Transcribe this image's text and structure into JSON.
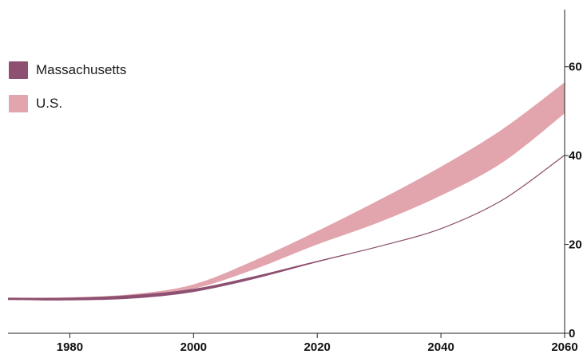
{
  "chart_data": {
    "type": "area",
    "title": "",
    "xlabel": "",
    "ylabel": "",
    "xlim": [
      1970,
      2060
    ],
    "ylim": [
      0,
      70
    ],
    "x_ticks": [
      1980,
      2000,
      2020,
      2040,
      2060
    ],
    "x_tick_labels": [
      "1980",
      "2000",
      "2020",
      "2040",
      "2060"
    ],
    "y_ticks": [
      0,
      20,
      40,
      60
    ],
    "y_tick_labels": [
      "0",
      "20",
      "40",
      "60"
    ],
    "y_axis_side": "right",
    "grid": false,
    "legend_position": "top-left",
    "series": [
      {
        "name": "Massachusetts",
        "color": "#8e5070",
        "x": [
          1970,
          1980,
          1990,
          2000,
          2010,
          2020,
          2030,
          2040,
          2050,
          2060
        ],
        "lower": [
          7.5,
          7.4,
          7.8,
          9.3,
          12.3,
          16.0,
          19.5,
          23.5,
          30.0,
          40.0
        ],
        "upper": [
          8.0,
          8.0,
          8.6,
          10.0,
          12.9,
          16.3,
          19.6,
          23.6,
          30.1,
          40.2
        ]
      },
      {
        "name": "U.S.",
        "color": "#e2a4ad",
        "x": [
          1970,
          1980,
          1990,
          2000,
          2010,
          2020,
          2030,
          2040,
          2050,
          2060
        ],
        "lower": [
          7.5,
          7.6,
          8.0,
          10.0,
          14.5,
          20.0,
          25.0,
          31.0,
          38.5,
          49.5
        ],
        "upper": [
          8.0,
          8.1,
          8.8,
          11.0,
          16.5,
          23.0,
          30.0,
          37.5,
          46.0,
          56.5
        ]
      }
    ]
  }
}
